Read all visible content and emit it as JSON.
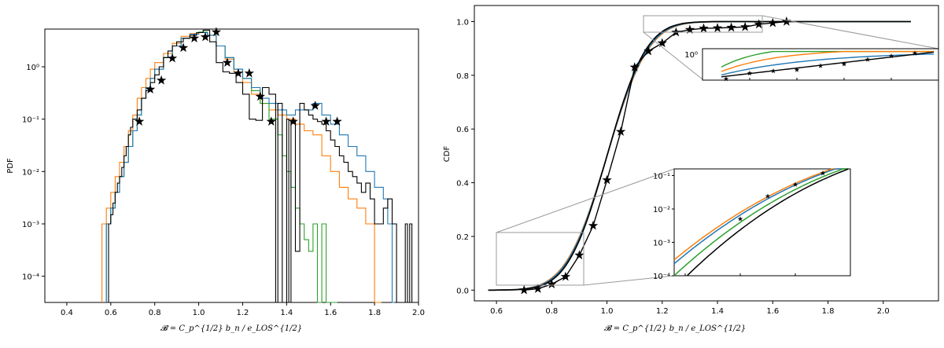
{
  "chart_data": [
    {
      "type": "step",
      "xlabel": "𝓑 = C_p^{1/2} b_n / e_LOS^{1/2}",
      "ylabel": "PDF",
      "xlim": [
        0.3,
        2.0
      ],
      "ylim_log10": [
        -4.5,
        0.72
      ],
      "yscale": "log",
      "xticks": [
        "0.4",
        "0.6",
        "0.8",
        "1.0",
        "1.2",
        "1.4",
        "1.6",
        "1.8",
        "2.0"
      ],
      "yticks": [
        "10⁻⁴",
        "10⁻³",
        "10⁻²",
        "10⁻¹",
        "10⁰"
      ],
      "colors": {
        "black": "#000000",
        "blue": "#1f77b4",
        "orange": "#ff7f0e",
        "green": "#2ca02c"
      },
      "series": [
        {
          "color": "black",
          "x": [
            0.59,
            0.6,
            0.61,
            0.62,
            0.63,
            0.64,
            0.65,
            0.66,
            0.67,
            0.68,
            0.69,
            0.7,
            0.72,
            0.74,
            0.76,
            0.78,
            0.8,
            0.82,
            0.84,
            0.86,
            0.88,
            0.9,
            0.93,
            0.96,
            0.99,
            1.02,
            1.05,
            1.08,
            1.11,
            1.14,
            1.17,
            1.2,
            1.23,
            1.26,
            1.29,
            1.32,
            1.35,
            1.36,
            1.38,
            1.4,
            1.41,
            1.42,
            1.44,
            1.46,
            1.48,
            1.5,
            1.52,
            1.54,
            1.56,
            1.58,
            1.6,
            1.62,
            1.64,
            1.66,
            1.68,
            1.7,
            1.72,
            1.74,
            1.76,
            1.78,
            1.8,
            1.82,
            1.84,
            1.86,
            1.88,
            1.9,
            1.92,
            1.94,
            1.95,
            1.96,
            1.97
          ],
          "y": [
            0.001,
            0.0015,
            0.0025,
            0.004,
            0.006,
            0.008,
            0.012,
            0.02,
            0.03,
            0.05,
            0.07,
            0.1,
            0.15,
            0.25,
            0.35,
            0.5,
            0.7,
            1.0,
            1.5,
            2.0,
            2.5,
            3.0,
            3.5,
            4.0,
            4.5,
            5.0,
            3.0,
            1.2,
            0.8,
            0.75,
            0.5,
            0.3,
            0.1,
            0.095,
            0.4,
            0.3,
            0.0001,
            0.2,
            0.0001,
            0.1,
            0.0001,
            0.09,
            0.0003,
            0.2,
            0.15,
            0.12,
            0.1,
            0.09,
            0.08,
            0.06,
            0.04,
            0.03,
            0.02,
            0.015,
            0.01,
            0.008,
            0.006,
            0.004,
            0.006,
            0.003,
            0.001,
            0.001,
            0.002,
            0.003,
            0.001,
            0.0001,
            0.0001,
            0.001,
            0.0001,
            0.001,
            0.0001
          ]
        },
        {
          "color": "blue",
          "x": [
            0.58,
            0.6,
            0.62,
            0.64,
            0.66,
            0.68,
            0.7,
            0.72,
            0.74,
            0.76,
            0.78,
            0.8,
            0.84,
            0.88,
            0.92,
            0.96,
            1.0,
            1.04,
            1.08,
            1.12,
            1.16,
            1.2,
            1.24,
            1.28,
            1.32,
            1.36,
            1.4,
            1.44,
            1.48,
            1.52,
            1.56,
            1.6,
            1.64,
            1.68,
            1.72,
            1.76,
            1.8,
            1.84,
            1.86,
            1.88
          ],
          "y": [
            0.001,
            0.002,
            0.004,
            0.008,
            0.015,
            0.03,
            0.06,
            0.12,
            0.25,
            0.4,
            0.6,
            0.9,
            1.5,
            2.5,
            3.5,
            4.2,
            4.5,
            4.0,
            2.5,
            1.5,
            0.9,
            0.6,
            0.4,
            0.25,
            0.2,
            0.15,
            0.12,
            0.15,
            0.15,
            0.2,
            0.12,
            0.08,
            0.05,
            0.03,
            0.02,
            0.01,
            0.005,
            0.003,
            0.001,
            0.0001
          ]
        },
        {
          "color": "orange",
          "x": [
            0.56,
            0.58,
            0.6,
            0.62,
            0.64,
            0.66,
            0.68,
            0.7,
            0.72,
            0.74,
            0.76,
            0.78,
            0.8,
            0.84,
            0.88,
            0.92,
            0.96,
            1.0,
            1.04,
            1.08,
            1.12,
            1.16,
            1.2,
            1.24,
            1.28,
            1.32,
            1.36,
            1.4,
            1.44,
            1.48,
            1.52,
            1.56,
            1.6,
            1.64,
            1.68,
            1.72,
            1.76,
            1.8,
            1.82
          ],
          "y": [
            0.001,
            0.002,
            0.004,
            0.008,
            0.015,
            0.03,
            0.06,
            0.12,
            0.25,
            0.4,
            0.6,
            0.9,
            1.2,
            1.8,
            2.8,
            3.8,
            4.3,
            4.5,
            4.0,
            2.5,
            1.4,
            0.8,
            0.5,
            0.3,
            0.2,
            0.15,
            0.12,
            0.1,
            0.08,
            0.06,
            0.05,
            0.02,
            0.01,
            0.005,
            0.003,
            0.002,
            0.001,
            0.0001,
            0.0001
          ]
        },
        {
          "color": "green",
          "x": [
            0.58,
            0.6,
            0.62,
            0.64,
            0.66,
            0.68,
            0.7,
            0.72,
            0.74,
            0.76,
            0.78,
            0.8,
            0.84,
            0.88,
            0.92,
            0.96,
            1.0,
            1.04,
            1.08,
            1.12,
            1.16,
            1.2,
            1.24,
            1.28,
            1.32,
            1.36,
            1.38,
            1.4,
            1.42,
            1.44,
            1.46,
            1.48,
            1.5,
            1.52,
            1.54,
            1.56,
            1.58,
            1.6,
            1.62
          ],
          "y": [
            0.001,
            0.002,
            0.004,
            0.008,
            0.015,
            0.03,
            0.06,
            0.12,
            0.25,
            0.4,
            0.6,
            0.9,
            1.5,
            2.5,
            3.5,
            4.2,
            4.6,
            4.0,
            2.5,
            1.5,
            0.9,
            0.6,
            0.35,
            0.2,
            0.1,
            0.05,
            0.02,
            0.01,
            0.005,
            0.002,
            0.001,
            0.0005,
            0.0003,
            0.001,
            0.0001,
            0.001,
            0.0001,
            0.0001,
            0.0001
          ]
        }
      ],
      "stars": {
        "x": [
          0.73,
          0.78,
          0.83,
          0.88,
          0.93,
          0.98,
          1.03,
          1.08,
          1.13,
          1.18,
          1.23,
          1.28,
          1.33,
          1.43,
          1.53,
          1.58,
          1.63
        ],
        "y": [
          0.09,
          0.37,
          0.55,
          1.45,
          2.3,
          3.5,
          3.7,
          4.6,
          1.2,
          0.75,
          0.75,
          0.27,
          0.09,
          0.09,
          0.18,
          0.09,
          0.09
        ]
      }
    },
    {
      "type": "line",
      "xlabel": "𝓑 = C_p^{1/2} b_n / e_LOS^{1/2}",
      "ylabel": "CDF",
      "xlim": [
        0.52,
        2.2
      ],
      "ylim": [
        -0.04,
        1.06
      ],
      "xticks": [
        "0.6",
        "0.8",
        "1.0",
        "1.2",
        "1.4",
        "1.6",
        "1.8",
        "2.0"
      ],
      "yticks": [
        "0.0",
        "0.2",
        "0.4",
        "0.6",
        "0.8",
        "1.0"
      ],
      "colors": {
        "black": "#000000",
        "blue": "#1f77b4",
        "orange": "#ff7f0e",
        "green": "#2ca02c",
        "box": "#999999"
      },
      "stars": {
        "x": [
          0.7,
          0.75,
          0.8,
          0.85,
          0.9,
          0.95,
          1.0,
          1.05,
          1.1,
          1.15,
          1.2,
          1.25,
          1.3,
          1.35,
          1.4,
          1.45,
          1.5,
          1.55,
          1.6,
          1.65
        ],
        "y": [
          0.0,
          0.005,
          0.022,
          0.05,
          0.13,
          0.24,
          0.41,
          0.59,
          0.83,
          0.89,
          0.92,
          0.96,
          0.97,
          0.975,
          0.976,
          0.978,
          0.98,
          0.99,
          0.995,
          1.0
        ]
      },
      "inset_upper": {
        "xlim": [
          1.2,
          1.7
        ],
        "ylim": [
          0.95,
          1.005
        ],
        "ytick": "10⁰"
      },
      "inset_lower": {
        "xlim": [
          0.58,
          0.9
        ],
        "ylim_log10": [
          -4,
          -0.8
        ],
        "yticks": [
          "10⁻¹",
          "10⁻²",
          "10⁻³",
          "10⁻⁴"
        ]
      }
    }
  ]
}
